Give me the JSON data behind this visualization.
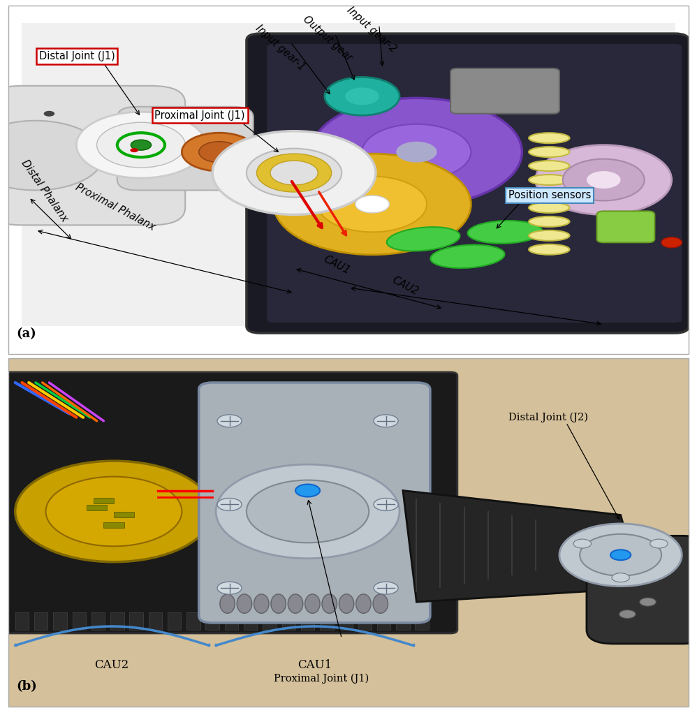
{
  "figure_width": 9.98,
  "figure_height": 10.24,
  "dpi": 100,
  "bg_color": "#ffffff",
  "panel_a_bg": "#f5f5f5",
  "panel_b_bg": "#d8c8a8",
  "border_color": "#aaaaaa",
  "panel_a_label": "(a)",
  "panel_b_label": "(b)",
  "label_fontsize": 13,
  "ann_fontsize": 10.5,
  "italic_labels": [
    "Input gear-2",
    "Output gear",
    "Input gear-1",
    "Distal Phalanx",
    "Proximal Phalanx",
    "CAU1",
    "CAU2"
  ],
  "ann_color": "#000000",
  "box_red_edge": "#cc0000",
  "box_blue_edge": "#4488bb",
  "box_blue_face": "#cce8ff",
  "brace_color": "#4488cc"
}
